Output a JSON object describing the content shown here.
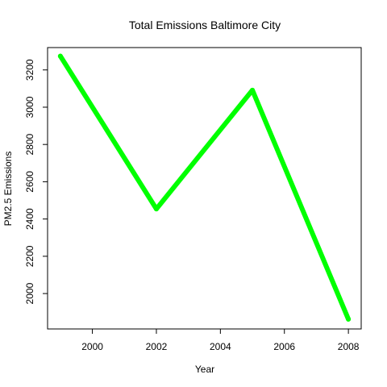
{
  "chart_data": {
    "type": "line",
    "title": "Total Emissions Baltimore City",
    "xlabel": "Year",
    "ylabel": "PM2.5 Emissions",
    "x": [
      1999,
      2002,
      2005,
      2008
    ],
    "series": [
      {
        "values": [
          3274.18,
          2453.916,
          3091.354,
          1862.282
        ],
        "color": "#00ff00"
      }
    ],
    "xlim": [
      1998.6,
      2008.4
    ],
    "ylim": [
      1810,
      3320
    ],
    "xticks": [
      2000,
      2002,
      2004,
      2006,
      2008
    ],
    "yticks": [
      2000,
      2200,
      2400,
      2600,
      2800,
      3000,
      3200
    ],
    "grid": false,
    "legend": "none"
  }
}
